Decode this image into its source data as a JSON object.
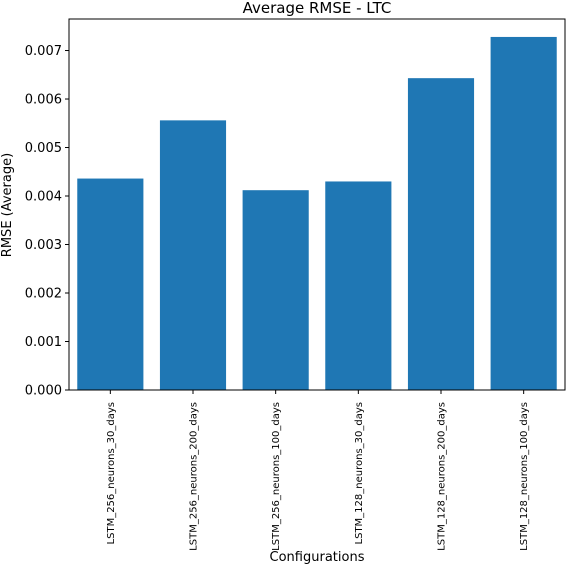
{
  "chart_data": {
    "type": "bar",
    "title": "Average RMSE - LTC",
    "xlabel": "Configurations",
    "ylabel": "RMSE (Average)",
    "categories": [
      "LSTM_256_neurons_30_days",
      "LSTM_256_neurons_200_days",
      "LSTM_256_neurons_100_days",
      "LSTM_128_neurons_30_days",
      "LSTM_128_neurons_200_days",
      "LSTM_128_neurons_100_days"
    ],
    "values": [
      0.00436,
      0.00556,
      0.00412,
      0.0043,
      0.00643,
      0.00728
    ],
    "ylim": [
      0,
      0.00765
    ],
    "yticks": [
      "0.000",
      "0.001",
      "0.002",
      "0.003",
      "0.004",
      "0.005",
      "0.006",
      "0.007"
    ],
    "bar_color": "#1f77b4",
    "grid": false
  }
}
